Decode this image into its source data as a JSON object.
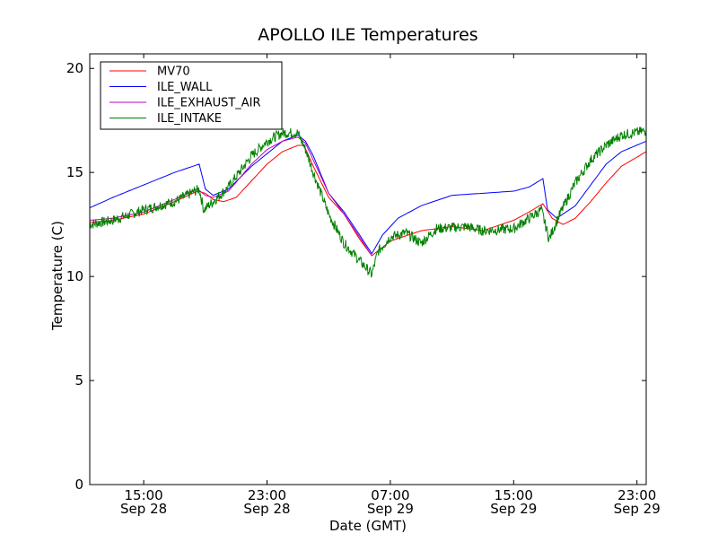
{
  "chart_data": {
    "type": "line",
    "title": "APOLLO ILE Temperatures",
    "xlabel": "Date (GMT)",
    "ylabel": "Temperature (C)",
    "xlim_hours": [
      11.5,
      47.6
    ],
    "ylim": [
      0,
      20.7
    ],
    "grid": false,
    "legend_position": "top-left",
    "y_ticks": [
      0,
      5,
      10,
      15,
      20
    ],
    "x_ticks": [
      {
        "hour": 15,
        "time": "15:00",
        "date": "Sep 28"
      },
      {
        "hour": 23,
        "time": "23:00",
        "date": "Sep 28"
      },
      {
        "hour": 31,
        "time": "07:00",
        "date": "Sep 29"
      },
      {
        "hour": 39,
        "time": "15:00",
        "date": "Sep 29"
      },
      {
        "hour": 47,
        "time": "23:00",
        "date": "Sep 29"
      }
    ],
    "series": [
      {
        "name": "MV70",
        "color": "#ff0000",
        "noise": 0,
        "points": [
          [
            11.5,
            12.6
          ],
          [
            13,
            12.7
          ],
          [
            15,
            13.0
          ],
          [
            17,
            13.6
          ],
          [
            18.5,
            14.1
          ],
          [
            19,
            14.0
          ],
          [
            19.5,
            13.7
          ],
          [
            20.2,
            13.6
          ],
          [
            21,
            13.8
          ],
          [
            22,
            14.6
          ],
          [
            23,
            15.4
          ],
          [
            24,
            16.0
          ],
          [
            25,
            16.3
          ],
          [
            25.4,
            16.3
          ],
          [
            26,
            15.3
          ],
          [
            27,
            13.8
          ],
          [
            28,
            13.0
          ],
          [
            29,
            11.8
          ],
          [
            29.8,
            11.0
          ],
          [
            31,
            11.7
          ],
          [
            33,
            12.2
          ],
          [
            35,
            12.4
          ],
          [
            37,
            12.2
          ],
          [
            39,
            12.7
          ],
          [
            40,
            13.1
          ],
          [
            40.9,
            13.5
          ],
          [
            41.5,
            12.8
          ],
          [
            42.2,
            12.5
          ],
          [
            43,
            12.8
          ],
          [
            44,
            13.6
          ],
          [
            45,
            14.5
          ],
          [
            46,
            15.3
          ],
          [
            47.6,
            16.0
          ]
        ]
      },
      {
        "name": "ILE_WALL",
        "color": "#0000ff",
        "noise": 0,
        "points": [
          [
            11.5,
            13.3
          ],
          [
            13,
            13.8
          ],
          [
            15,
            14.4
          ],
          [
            17,
            15.0
          ],
          [
            18.6,
            15.4
          ],
          [
            19,
            14.2
          ],
          [
            19.5,
            13.9
          ],
          [
            20.5,
            14.2
          ],
          [
            22,
            15.3
          ],
          [
            23,
            15.9
          ],
          [
            24,
            16.5
          ],
          [
            25,
            16.8
          ],
          [
            25.5,
            16.5
          ],
          [
            26,
            15.8
          ],
          [
            27,
            14.0
          ],
          [
            28,
            13.1
          ],
          [
            29,
            12.0
          ],
          [
            29.8,
            11.1
          ],
          [
            30.5,
            12.0
          ],
          [
            31.5,
            12.8
          ],
          [
            33,
            13.4
          ],
          [
            35,
            13.9
          ],
          [
            37,
            14.0
          ],
          [
            39,
            14.1
          ],
          [
            40,
            14.3
          ],
          [
            40.9,
            14.7
          ],
          [
            41.2,
            13.2
          ],
          [
            41.8,
            12.8
          ],
          [
            43,
            13.4
          ],
          [
            44,
            14.4
          ],
          [
            45,
            15.4
          ],
          [
            46,
            16.0
          ],
          [
            47.6,
            16.5
          ]
        ]
      },
      {
        "name": "ILE_EXHAUST_AIR",
        "color": "#bf00bf",
        "noise": 0,
        "points": [
          [
            11.5,
            12.7
          ],
          [
            13,
            12.8
          ],
          [
            15,
            13.1
          ],
          [
            17,
            13.7
          ],
          [
            18.5,
            14.2
          ],
          [
            19,
            13.9
          ],
          [
            19.5,
            13.8
          ],
          [
            20.5,
            14.1
          ],
          [
            22,
            15.4
          ],
          [
            23,
            16.1
          ],
          [
            24,
            16.5
          ],
          [
            25,
            16.7
          ],
          [
            25.5,
            16.4
          ],
          [
            26,
            15.6
          ],
          [
            27,
            14.0
          ],
          [
            28,
            13.0
          ],
          [
            29,
            11.9
          ],
          [
            29.8,
            11.0
          ]
        ]
      },
      {
        "name": "ILE_INTAKE",
        "color": "#008000",
        "noise": 0.25,
        "points": [
          [
            11.5,
            12.5
          ],
          [
            13,
            12.7
          ],
          [
            15,
            13.2
          ],
          [
            17,
            13.6
          ],
          [
            18.6,
            14.2
          ],
          [
            18.9,
            13.2
          ],
          [
            19.5,
            13.6
          ],
          [
            20.5,
            14.3
          ],
          [
            22,
            15.8
          ],
          [
            23,
            16.5
          ],
          [
            24,
            16.9
          ],
          [
            25,
            16.9
          ],
          [
            25.5,
            16.1
          ],
          [
            26,
            15.0
          ],
          [
            27,
            13.0
          ],
          [
            28,
            11.6
          ],
          [
            29.8,
            10.1
          ],
          [
            30.2,
            11.2
          ],
          [
            31,
            11.9
          ],
          [
            32,
            12.1
          ],
          [
            33,
            11.6
          ],
          [
            34,
            12.3
          ],
          [
            36,
            12.4
          ],
          [
            37,
            12.2
          ],
          [
            39,
            12.3
          ],
          [
            40,
            12.8
          ],
          [
            40.8,
            13.2
          ],
          [
            41.3,
            11.8
          ],
          [
            42,
            13.0
          ],
          [
            43,
            14.5
          ],
          [
            44,
            15.6
          ],
          [
            45,
            16.3
          ],
          [
            46,
            16.8
          ],
          [
            47.6,
            17.0
          ]
        ]
      }
    ]
  }
}
